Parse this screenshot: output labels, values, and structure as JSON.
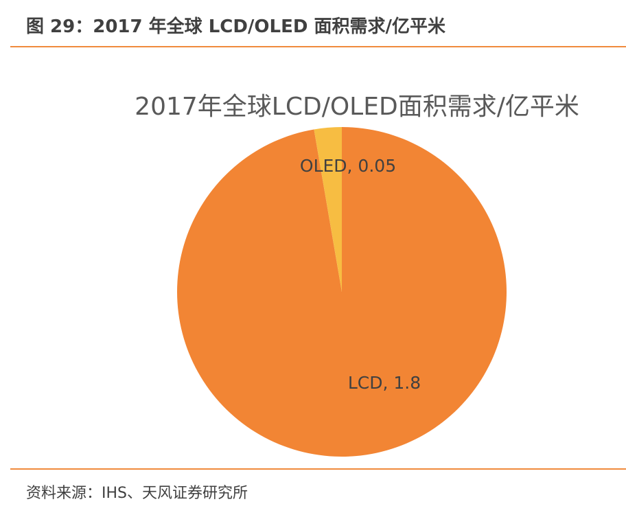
{
  "figure_title": "图 29：2017 年全球 LCD/OLED 面积需求/亿平米",
  "source": "资料来源：IHS、天风证券研究所",
  "colors": {
    "LCD": "#F28534",
    "OLED": "#F7BD42",
    "rule": "#F08A3C"
  },
  "chart_data": {
    "type": "pie",
    "title": "2017年全球LCD/OLED面积需求/亿平米",
    "start": "top, counterclockwise for OLED",
    "slices": [
      {
        "label": "LCD",
        "value": 1.8,
        "data_label": "LCD, 1.8"
      },
      {
        "label": "OLED",
        "value": 0.05,
        "data_label": "OLED, 0.05"
      }
    ],
    "legend": "none"
  }
}
